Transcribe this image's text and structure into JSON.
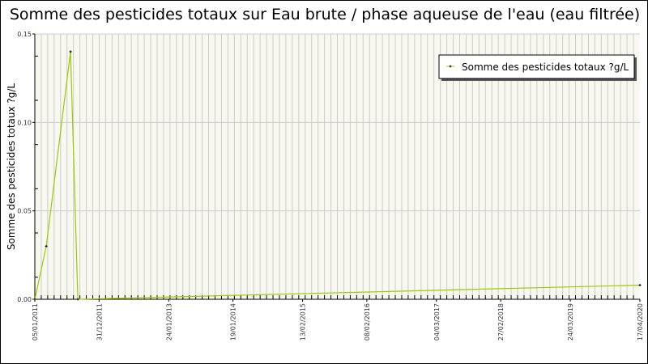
{
  "chart_data": {
    "type": "line",
    "title": "Somme des pesticides totaux sur Eau brute / phase aqueuse de l'eau (eau filtrée)",
    "ylabel": "Somme des pesticides totaux ?g/L",
    "xlabel": "",
    "ylim": [
      0,
      0.15
    ],
    "xlim": [
      "2011-01-05",
      "2020-04-17"
    ],
    "yticks": [
      "0.00",
      "0.05",
      "0.10",
      "0.15"
    ],
    "xticks": [
      {
        "date": "2011-01-05",
        "label": "05/01/2011"
      },
      {
        "date": "2011-12-31",
        "label": "31/12/2011"
      },
      {
        "date": "2013-01-24",
        "label": "24/01/2013"
      },
      {
        "date": "2014-01-19",
        "label": "19/01/2014"
      },
      {
        "date": "2015-02-13",
        "label": "13/02/2015"
      },
      {
        "date": "2016-02-08",
        "label": "08/02/2016"
      },
      {
        "date": "2017-03-04",
        "label": "04/03/2017"
      },
      {
        "date": "2018-02-27",
        "label": "27/02/2018"
      },
      {
        "date": "2019-03-24",
        "label": "24/03/2019"
      },
      {
        "date": "2020-04-17",
        "label": "17/04/2020"
      }
    ],
    "grid": true,
    "legend_position": "top-right",
    "series": [
      {
        "name": "Somme des pesticides totaux ?g/L",
        "color": "#99cc00",
        "marker_color": "#000000",
        "points": [
          {
            "x": "2011-01-05",
            "y": 0.0
          },
          {
            "x": "2011-03-10",
            "y": 0.03
          },
          {
            "x": "2011-07-24",
            "y": 0.14
          },
          {
            "x": "2011-09-03",
            "y": 0.0
          },
          {
            "x": "2020-04-17",
            "y": 0.008
          }
        ]
      }
    ]
  },
  "colors": {
    "plot_bg": "#f8f8f0",
    "grid": "#cccccc",
    "line": "#99cc00"
  }
}
